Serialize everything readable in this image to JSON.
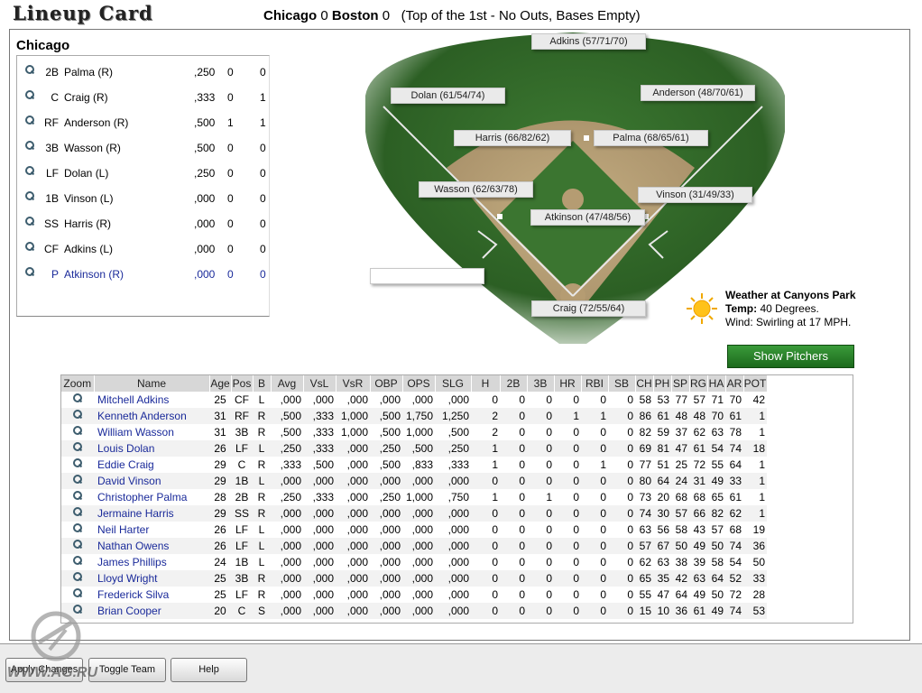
{
  "app_title": "Lineup Card",
  "scoreline": {
    "home_team": "Chicago",
    "home_score": "0",
    "away_team": "Boston",
    "away_score": "0",
    "status": "(Top of the 1st - No Outs, Bases Empty)"
  },
  "lineup": {
    "team": "Chicago",
    "rows": [
      {
        "pos": "2B",
        "name": "Palma (R)",
        "avg": ",250",
        "a": "0",
        "b": "0"
      },
      {
        "pos": "C",
        "name": "Craig (R)",
        "avg": ",333",
        "a": "0",
        "b": "1"
      },
      {
        "pos": "RF",
        "name": "Anderson (R)",
        "avg": ",500",
        "a": "1",
        "b": "1"
      },
      {
        "pos": "3B",
        "name": "Wasson (R)",
        "avg": ",500",
        "a": "0",
        "b": "0"
      },
      {
        "pos": "LF",
        "name": "Dolan (L)",
        "avg": ",250",
        "a": "0",
        "b": "0"
      },
      {
        "pos": "1B",
        "name": "Vinson (L)",
        "avg": ",000",
        "a": "0",
        "b": "0"
      },
      {
        "pos": "SS",
        "name": "Harris (R)",
        "avg": ",000",
        "a": "0",
        "b": "0"
      },
      {
        "pos": "CF",
        "name": "Adkins (L)",
        "avg": ",000",
        "a": "0",
        "b": "0"
      },
      {
        "pos": "P",
        "name": "Atkinson (R)",
        "avg": ",000",
        "a": "0",
        "b": "0"
      }
    ]
  },
  "field_labels": {
    "cf": "Adkins (57/71/70)",
    "lf": "Dolan (61/54/74)",
    "rf": "Anderson (48/70/61)",
    "ss": "Harris (66/82/62)",
    "b2": "Palma (68/65/61)",
    "b3": "Wasson (62/63/78)",
    "b1": "Vinson (31/49/33)",
    "p": "Atkinson (47/48/56)",
    "c": "Craig (72/55/64)",
    "empty": ""
  },
  "weather": {
    "title": "Weather at Canyons Park",
    "temp_label": "Temp:",
    "temp_value": "40 Degrees.",
    "wind": "Wind: Swirling at 17 MPH."
  },
  "show_pitchers_label": "Show Pitchers",
  "roster": {
    "headers": [
      "Zoom",
      "Name",
      "Age",
      "Pos",
      "B",
      "Avg",
      "VsL",
      "VsR",
      "OBP",
      "OPS",
      "SLG",
      "H",
      "2B",
      "3B",
      "HR",
      "RBI",
      "SB",
      "CH",
      "PH",
      "SP",
      "RG",
      "HA",
      "AR",
      "POT"
    ],
    "rows": [
      [
        "Mitchell Adkins",
        "25",
        "CF",
        "L",
        ",000",
        ",000",
        ",000",
        ",000",
        ",000",
        ",000",
        "0",
        "0",
        "0",
        "0",
        "0",
        "0",
        "58",
        "53",
        "77",
        "57",
        "71",
        "70",
        "42"
      ],
      [
        "Kenneth Anderson",
        "31",
        "RF",
        "R",
        ",500",
        ",333",
        "1,000",
        ",500",
        "1,750",
        "1,250",
        "2",
        "0",
        "0",
        "1",
        "1",
        "0",
        "86",
        "61",
        "48",
        "48",
        "70",
        "61",
        "1"
      ],
      [
        "William Wasson",
        "31",
        "3B",
        "R",
        ",500",
        ",333",
        "1,000",
        ",500",
        "1,000",
        ",500",
        "2",
        "0",
        "0",
        "0",
        "0",
        "0",
        "82",
        "59",
        "37",
        "62",
        "63",
        "78",
        "1"
      ],
      [
        "Louis Dolan",
        "26",
        "LF",
        "L",
        ",250",
        ",333",
        ",000",
        ",250",
        ",500",
        ",250",
        "1",
        "0",
        "0",
        "0",
        "0",
        "0",
        "69",
        "81",
        "47",
        "61",
        "54",
        "74",
        "18"
      ],
      [
        "Eddie Craig",
        "29",
        "C",
        "R",
        ",333",
        ",500",
        ",000",
        ",500",
        ",833",
        ",333",
        "1",
        "0",
        "0",
        "0",
        "1",
        "0",
        "77",
        "51",
        "25",
        "72",
        "55",
        "64",
        "1"
      ],
      [
        "David Vinson",
        "29",
        "1B",
        "L",
        ",000",
        ",000",
        ",000",
        ",000",
        ",000",
        ",000",
        "0",
        "0",
        "0",
        "0",
        "0",
        "0",
        "80",
        "64",
        "24",
        "31",
        "49",
        "33",
        "1"
      ],
      [
        "Christopher Palma",
        "28",
        "2B",
        "R",
        ",250",
        ",333",
        ",000",
        ",250",
        "1,000",
        ",750",
        "1",
        "0",
        "1",
        "0",
        "0",
        "0",
        "73",
        "20",
        "68",
        "68",
        "65",
        "61",
        "1"
      ],
      [
        "Jermaine Harris",
        "29",
        "SS",
        "R",
        ",000",
        ",000",
        ",000",
        ",000",
        ",000",
        ",000",
        "0",
        "0",
        "0",
        "0",
        "0",
        "0",
        "74",
        "30",
        "57",
        "66",
        "82",
        "62",
        "1"
      ],
      [
        "Neil Harter",
        "26",
        "LF",
        "L",
        ",000",
        ",000",
        ",000",
        ",000",
        ",000",
        ",000",
        "0",
        "0",
        "0",
        "0",
        "0",
        "0",
        "63",
        "56",
        "58",
        "43",
        "57",
        "68",
        "19"
      ],
      [
        "Nathan Owens",
        "26",
        "LF",
        "L",
        ",000",
        ",000",
        ",000",
        ",000",
        ",000",
        ",000",
        "0",
        "0",
        "0",
        "0",
        "0",
        "0",
        "57",
        "67",
        "50",
        "49",
        "50",
        "74",
        "36"
      ],
      [
        "James Phillips",
        "24",
        "1B",
        "L",
        ",000",
        ",000",
        ",000",
        ",000",
        ",000",
        ",000",
        "0",
        "0",
        "0",
        "0",
        "0",
        "0",
        "62",
        "63",
        "38",
        "39",
        "58",
        "54",
        "50"
      ],
      [
        "Lloyd Wright",
        "25",
        "3B",
        "R",
        ",000",
        ",000",
        ",000",
        ",000",
        ",000",
        ",000",
        "0",
        "0",
        "0",
        "0",
        "0",
        "0",
        "65",
        "35",
        "42",
        "63",
        "64",
        "52",
        "33"
      ],
      [
        "Frederick Silva",
        "25",
        "LF",
        "R",
        ",000",
        ",000",
        ",000",
        ",000",
        ",000",
        ",000",
        "0",
        "0",
        "0",
        "0",
        "0",
        "0",
        "55",
        "47",
        "64",
        "49",
        "50",
        "72",
        "28"
      ],
      [
        "Brian Cooper",
        "20",
        "C",
        "S",
        ",000",
        ",000",
        ",000",
        ",000",
        ",000",
        ",000",
        "0",
        "0",
        "0",
        "0",
        "0",
        "0",
        "15",
        "10",
        "36",
        "61",
        "49",
        "74",
        "53"
      ]
    ]
  },
  "buttons": {
    "apply": "Apply Changes",
    "toggle": "Toggle Team",
    "help": "Help"
  },
  "watermark": "WWW.AG.RU"
}
